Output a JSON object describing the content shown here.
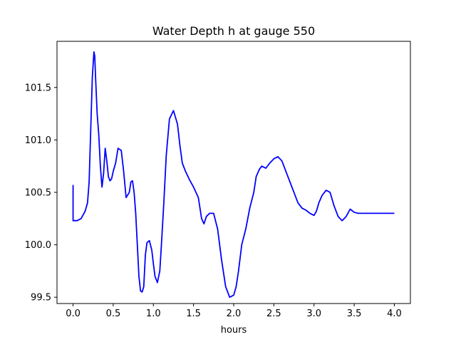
{
  "chart_data": {
    "type": "line",
    "title": "Water Depth h at gauge 550",
    "xlabel": "hours",
    "ylabel": "",
    "xlim": [
      -0.2,
      4.2
    ],
    "ylim": [
      99.44,
      101.94
    ],
    "xticks": [
      0.0,
      0.5,
      1.0,
      1.5,
      2.0,
      2.5,
      3.0,
      3.5,
      4.0
    ],
    "xtick_labels": [
      "0.0",
      "0.5",
      "1.0",
      "1.5",
      "2.0",
      "2.5",
      "3.0",
      "3.5",
      "4.0"
    ],
    "yticks": [
      99.5,
      100.0,
      100.5,
      101.0,
      101.5
    ],
    "ytick_labels": [
      "99.5",
      "100.0",
      "100.5",
      "101.0",
      "101.5"
    ],
    "grid": false,
    "legend": "none",
    "series": [
      {
        "color": "#0000ff",
        "x": [
          0.0,
          0.0,
          0.05,
          0.1,
          0.15,
          0.18,
          0.2,
          0.22,
          0.24,
          0.26,
          0.27,
          0.28,
          0.3,
          0.32,
          0.34,
          0.36,
          0.38,
          0.4,
          0.42,
          0.44,
          0.46,
          0.48,
          0.5,
          0.53,
          0.56,
          0.6,
          0.63,
          0.66,
          0.7,
          0.72,
          0.74,
          0.76,
          0.78,
          0.8,
          0.82,
          0.84,
          0.86,
          0.88,
          0.9,
          0.92,
          0.95,
          0.98,
          1.0,
          1.02,
          1.05,
          1.08,
          1.1,
          1.13,
          1.16,
          1.2,
          1.25,
          1.3,
          1.33,
          1.36,
          1.4,
          1.45,
          1.5,
          1.53,
          1.56,
          1.58,
          1.6,
          1.63,
          1.66,
          1.7,
          1.75,
          1.8,
          1.85,
          1.9,
          1.95,
          2.0,
          2.03,
          2.06,
          2.1,
          2.15,
          2.2,
          2.25,
          2.28,
          2.32,
          2.35,
          2.4,
          2.45,
          2.5,
          2.55,
          2.6,
          2.65,
          2.7,
          2.75,
          2.8,
          2.85,
          2.9,
          2.95,
          3.0,
          3.03,
          3.06,
          3.1,
          3.15,
          3.2,
          3.25,
          3.3,
          3.35,
          3.4,
          3.45,
          3.5,
          3.55,
          3.6,
          3.65,
          3.7,
          3.75,
          3.8,
          3.85,
          3.9,
          3.95,
          4.0
        ],
        "y": [
          100.57,
          100.23,
          100.23,
          100.25,
          100.32,
          100.4,
          100.6,
          101.1,
          101.6,
          101.84,
          101.8,
          101.6,
          101.25,
          101.05,
          100.75,
          100.55,
          100.68,
          100.92,
          100.8,
          100.65,
          100.61,
          100.63,
          100.7,
          100.78,
          100.92,
          100.9,
          100.7,
          100.45,
          100.5,
          100.6,
          100.61,
          100.5,
          100.3,
          100.0,
          99.7,
          99.56,
          99.55,
          99.6,
          99.9,
          100.02,
          100.04,
          99.95,
          99.82,
          99.7,
          99.64,
          99.75,
          100.0,
          100.4,
          100.85,
          101.2,
          101.28,
          101.15,
          100.95,
          100.78,
          100.7,
          100.62,
          100.55,
          100.5,
          100.45,
          100.35,
          100.25,
          100.2,
          100.27,
          100.3,
          100.3,
          100.15,
          99.85,
          99.6,
          99.5,
          99.52,
          99.6,
          99.75,
          100.0,
          100.15,
          100.35,
          100.5,
          100.65,
          100.72,
          100.75,
          100.73,
          100.78,
          100.82,
          100.84,
          100.8,
          100.7,
          100.6,
          100.5,
          100.4,
          100.35,
          100.33,
          100.3,
          100.28,
          100.32,
          100.4,
          100.47,
          100.52,
          100.5,
          100.37,
          100.27,
          100.23,
          100.27,
          100.34,
          100.31,
          100.3,
          100.3,
          100.3,
          100.3,
          100.3,
          100.3,
          100.3,
          100.3,
          100.3,
          100.3
        ]
      }
    ]
  }
}
